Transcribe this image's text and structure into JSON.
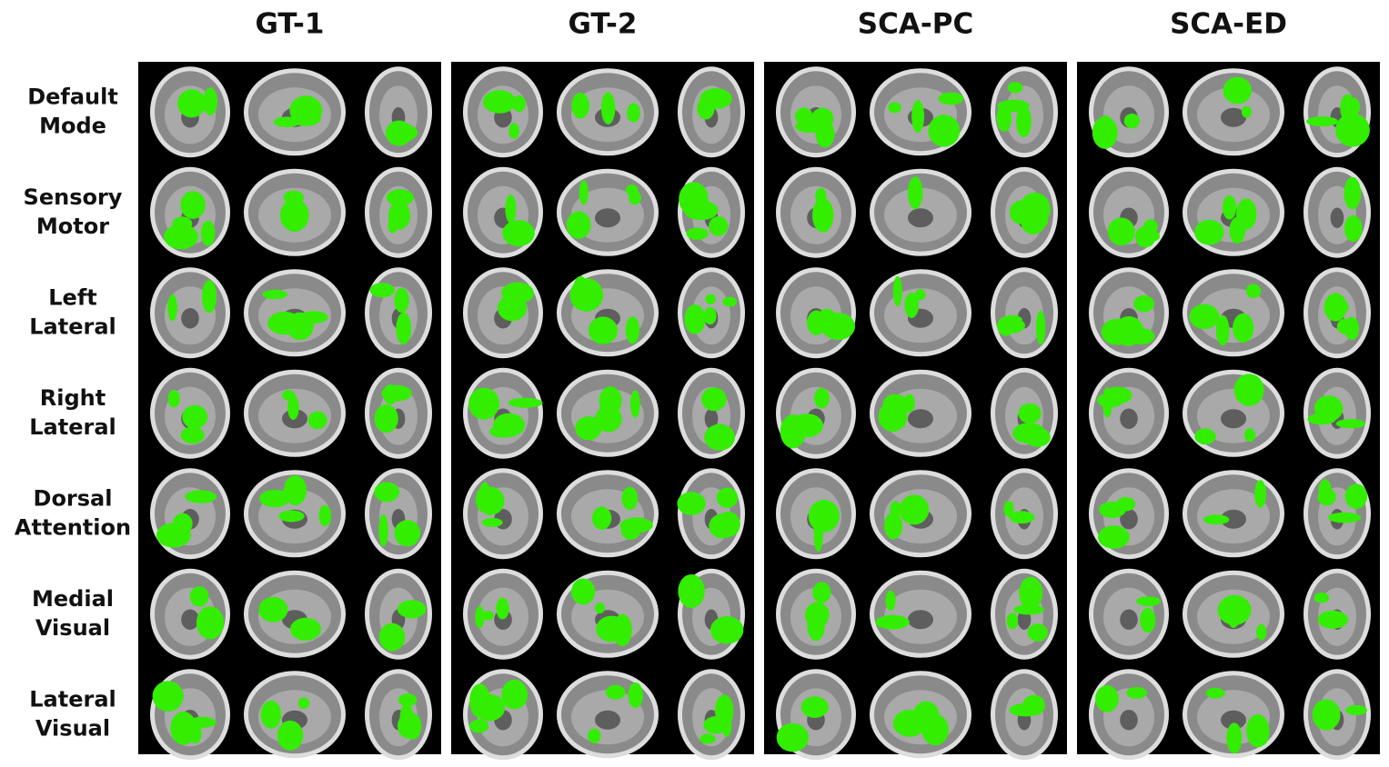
{
  "figure": {
    "columns": [
      "GT-1",
      "GT-2",
      "SCA-PC",
      "SCA-ED"
    ],
    "rows": [
      [
        "Default",
        "Mode"
      ],
      [
        "Sensory",
        "Motor"
      ],
      [
        "Left",
        "Lateral"
      ],
      [
        "Right",
        "Lateral"
      ],
      [
        "Dorsal",
        "Attention"
      ],
      [
        "Medial",
        "Visual"
      ],
      [
        "Lateral",
        "Visual"
      ]
    ]
  }
}
